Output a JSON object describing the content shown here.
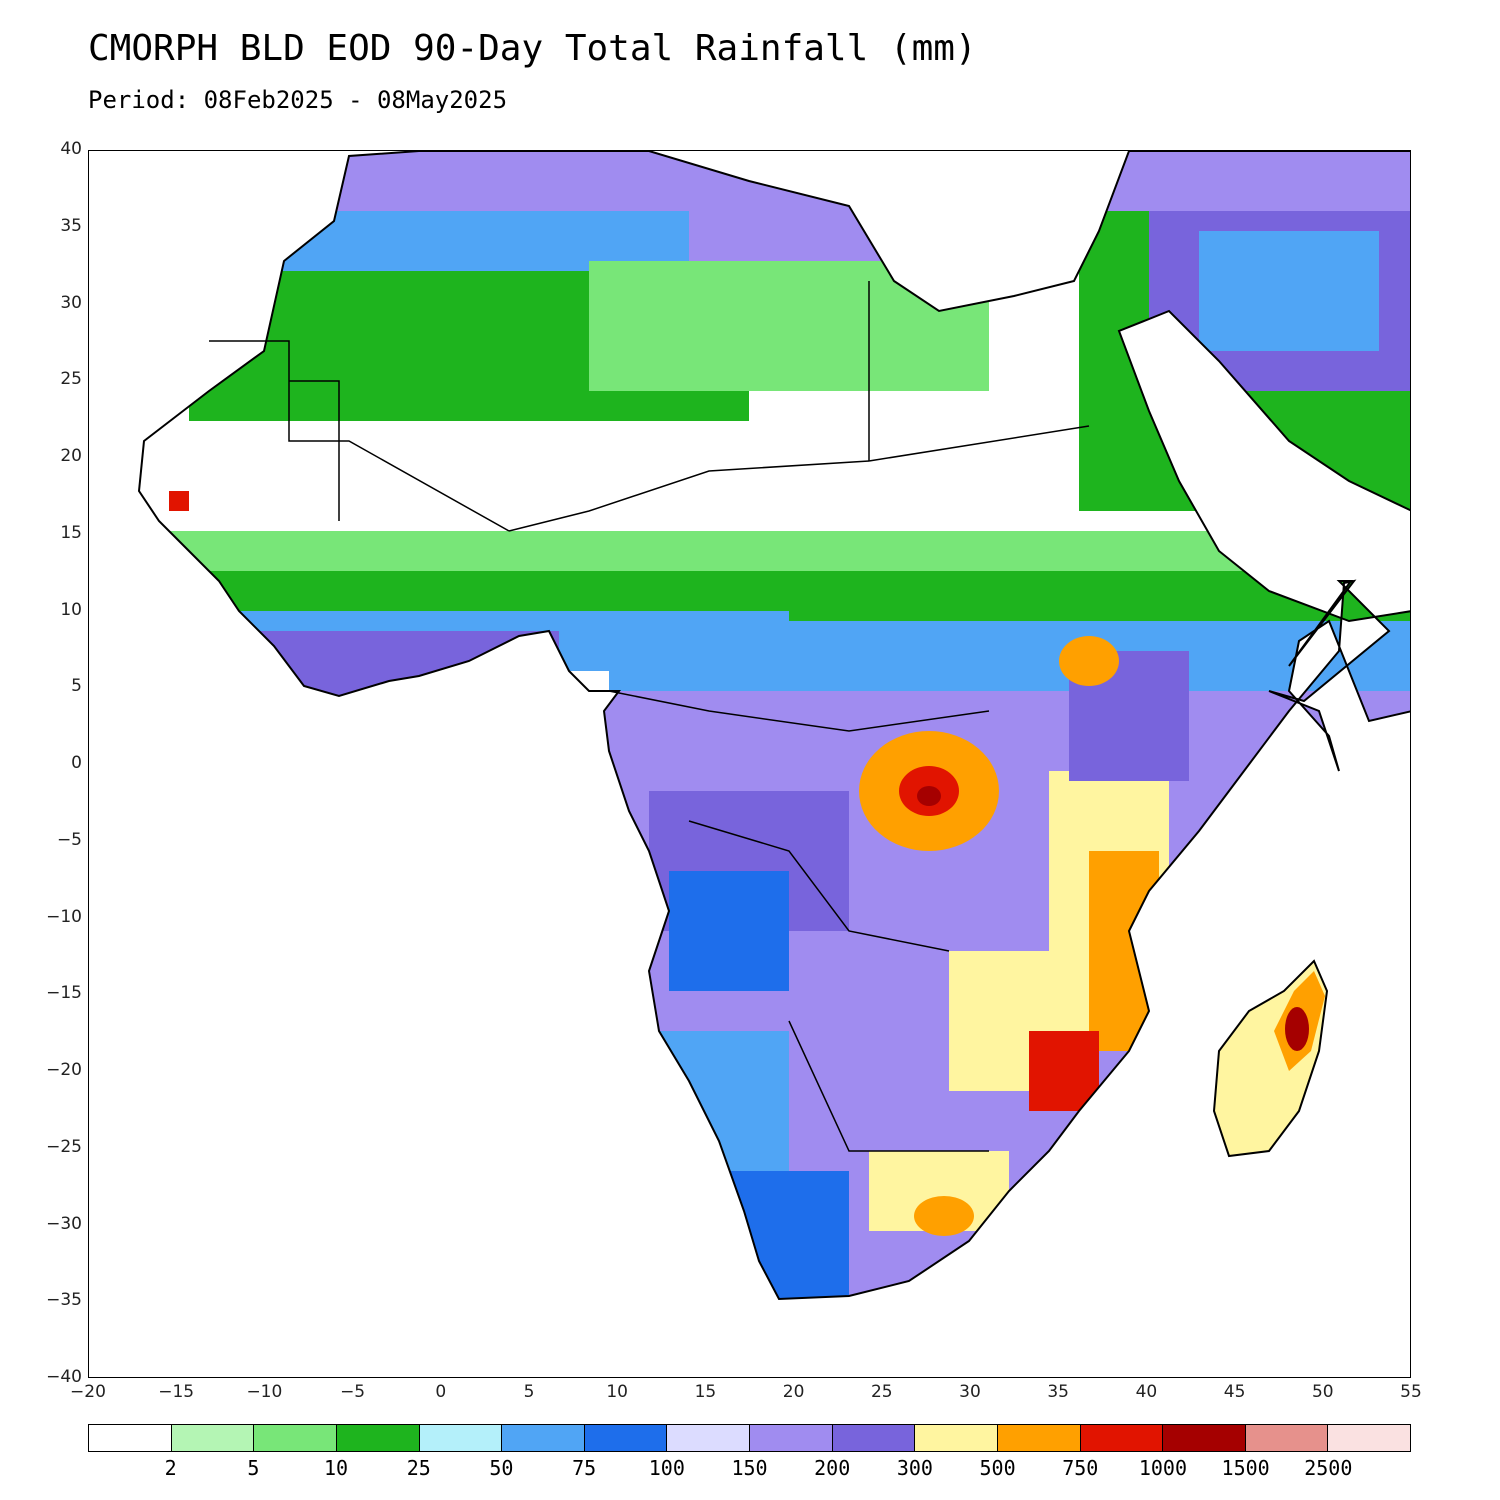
{
  "title": "CMORPH BLD EOD 90-Day Total Rainfall (mm)",
  "subtitle": "Period: 08Feb2025 - 08May2025",
  "map": {
    "lon_range": [
      -20,
      55
    ],
    "lat_range": [
      -40,
      40
    ],
    "x_ticks": [
      "−20",
      "−15",
      "−10",
      "−5",
      "0",
      "5",
      "10",
      "15",
      "20",
      "25",
      "30",
      "35",
      "40",
      "45",
      "50",
      "55"
    ],
    "y_ticks": [
      "40",
      "35",
      "30",
      "25",
      "20",
      "15",
      "10",
      "5",
      "0",
      "−5",
      "−10",
      "−15",
      "−20",
      "−25",
      "−30",
      "−35",
      "−40"
    ]
  },
  "legend": {
    "colors": [
      "#ffffff",
      "#b4f5b4",
      "#78e678",
      "#1eb41e",
      "#b4f0fa",
      "#50a5f5",
      "#1e6eeb",
      "#dcdcff",
      "#a08cf0",
      "#7864dc",
      "#fff5a0",
      "#ffa000",
      "#e11400",
      "#a50000",
      "#e6918c",
      "#fae1e1"
    ],
    "labels": [
      "2",
      "5",
      "10",
      "25",
      "50",
      "75",
      "100",
      "150",
      "200",
      "300",
      "500",
      "750",
      "1000",
      "1500",
      "2500"
    ]
  }
}
